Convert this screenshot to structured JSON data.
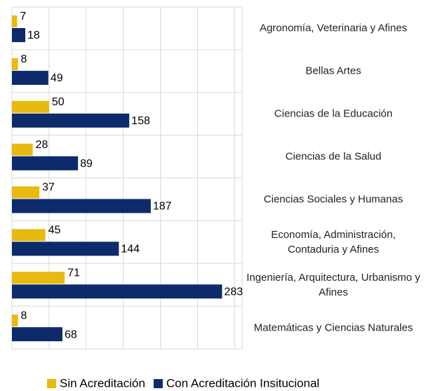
{
  "chart_data": {
    "type": "barh",
    "categories": [
      "Agronomía, Veterinaria y Afines",
      "Bellas Artes",
      "Ciencias de la Educación",
      "Ciencias de la Salud",
      "Ciencias Sociales y Humanas",
      "Economía, Administración, Contaduria y Afines",
      "Ingeniería, Arquitectura, Urbanismo y Afines",
      "Matemáticas y Ciencias Naturales"
    ],
    "series": [
      {
        "name": "Sin Acreditación",
        "color": "#e8b90e",
        "values": [
          7,
          8,
          50,
          28,
          37,
          45,
          71,
          8
        ]
      },
      {
        "name": "Con Acreditación Insitucional",
        "color": "#0d2a6b",
        "values": [
          18,
          49,
          158,
          89,
          187,
          144,
          283,
          68
        ]
      }
    ],
    "xlim": [
      0,
      310
    ],
    "xticks": [
      0,
      50,
      100,
      150,
      200,
      250,
      300
    ],
    "grid": true,
    "legend": "bottom"
  }
}
